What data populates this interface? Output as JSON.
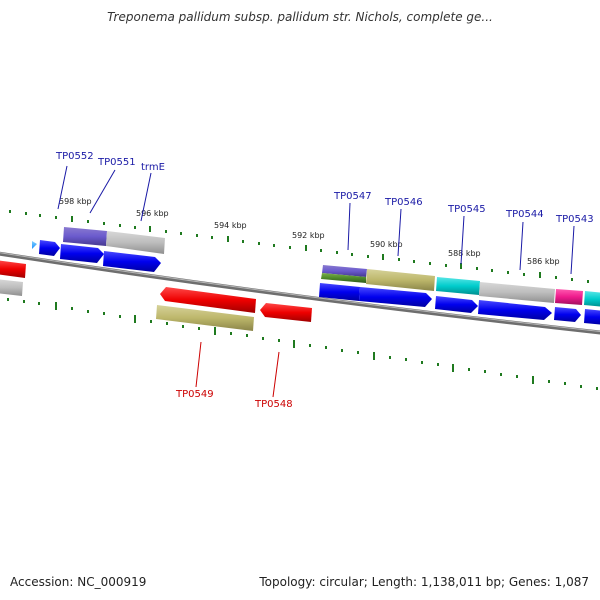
{
  "title": "Treponema pallidum subsp. pallidum str. Nichols, complete ge...",
  "footer": {
    "accession": "Accession: NC_000919",
    "summary": "Topology: circular; Length: 1,138,011 bp; Genes: 1,087"
  },
  "colors": {
    "backbone": "#808080",
    "tick": "#1f7a1f",
    "forward_label": "#1a1aa6",
    "reverse_label": "#cc0000"
  },
  "kbp_labels": [
    "598 kbp",
    "596 kbp",
    "594 kbp",
    "592 kbp",
    "590 kbp",
    "588 kbp",
    "586 kbp"
  ],
  "forward_gene_labels": [
    "TP0552",
    "TP0551",
    "trmE",
    "TP0547",
    "TP0546",
    "TP0545",
    "TP0544",
    "TP0543"
  ],
  "reverse_gene_labels": [
    "TP0549",
    "TP0548"
  ]
}
